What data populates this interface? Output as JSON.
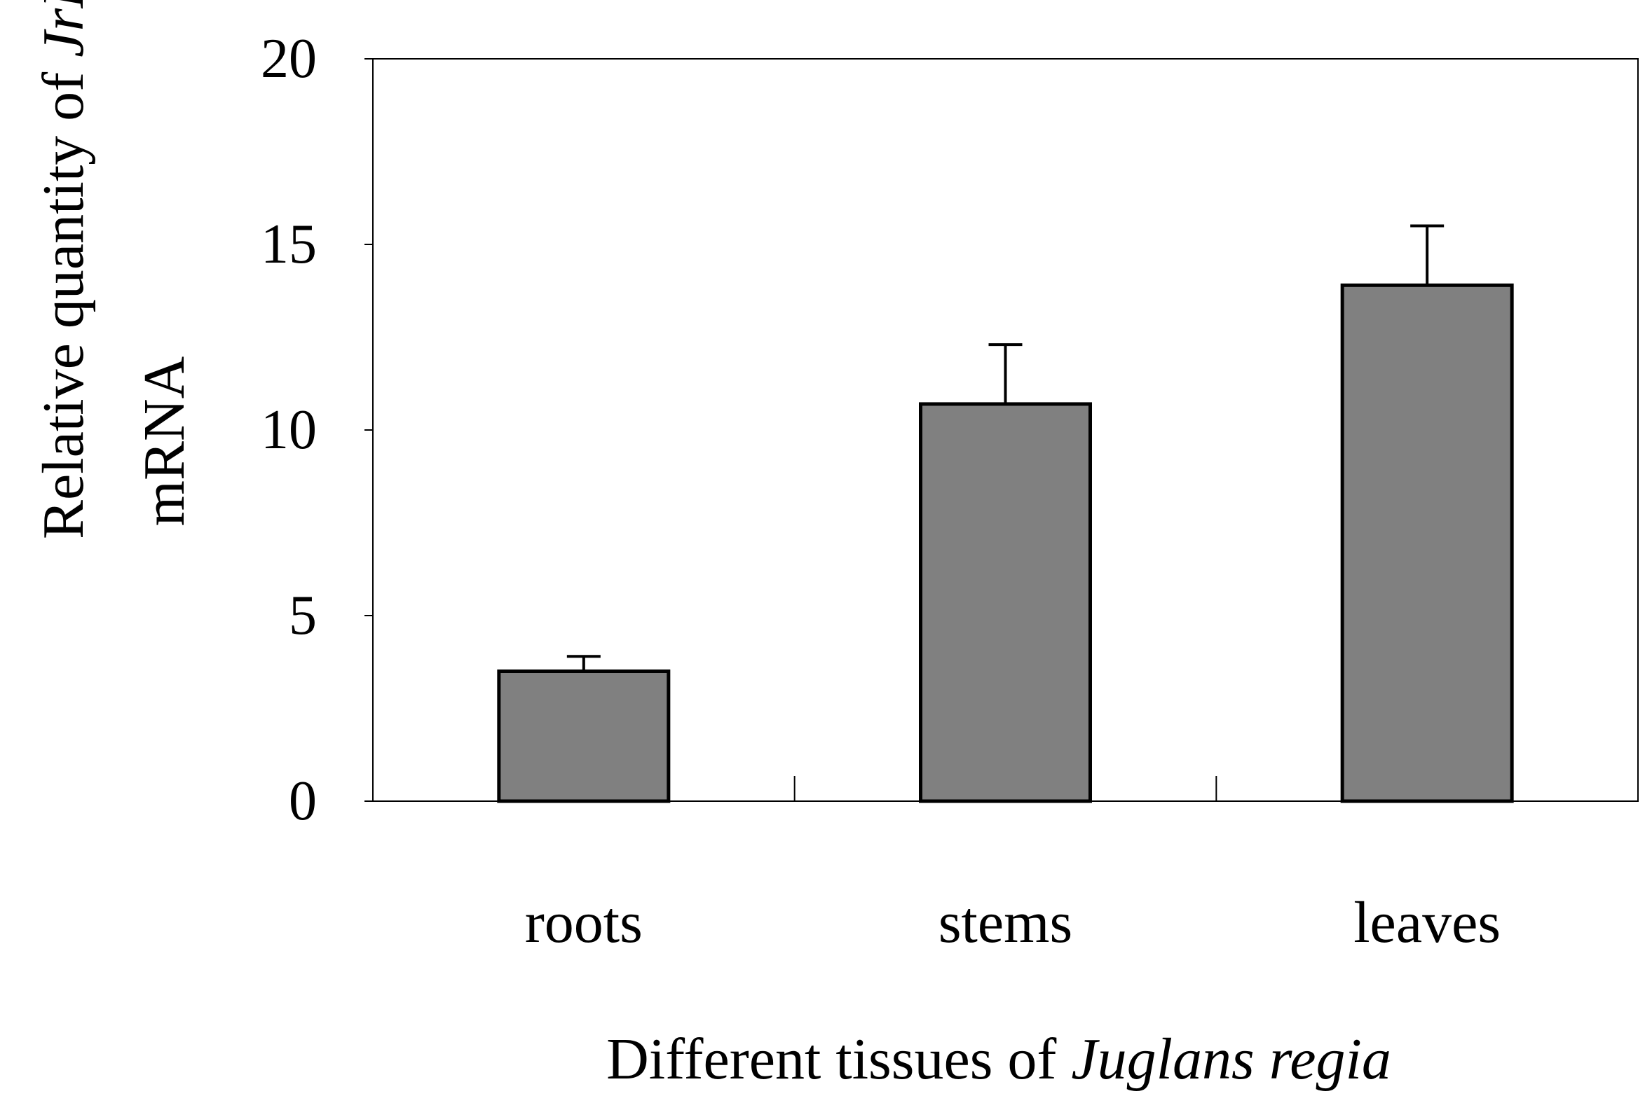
{
  "chart_data": {
    "type": "bar",
    "categories": [
      "roots",
      "stems",
      "leaves"
    ],
    "values": [
      3.5,
      10.7,
      13.9
    ],
    "error_bars": [
      0.4,
      1.6,
      1.6
    ],
    "ylim": [
      0,
      20
    ],
    "yticks": [
      "0",
      "5",
      "10",
      "15",
      "20"
    ],
    "ylabel": {
      "line1_prefix": "Relative quantity of ",
      "line1_italic": "JrPAL",
      "line2": "mRNA"
    },
    "xlabel": {
      "prefix": "Different tissues of ",
      "italic": "Juglans regia"
    },
    "bar_color": "#808080",
    "grid": false
  }
}
